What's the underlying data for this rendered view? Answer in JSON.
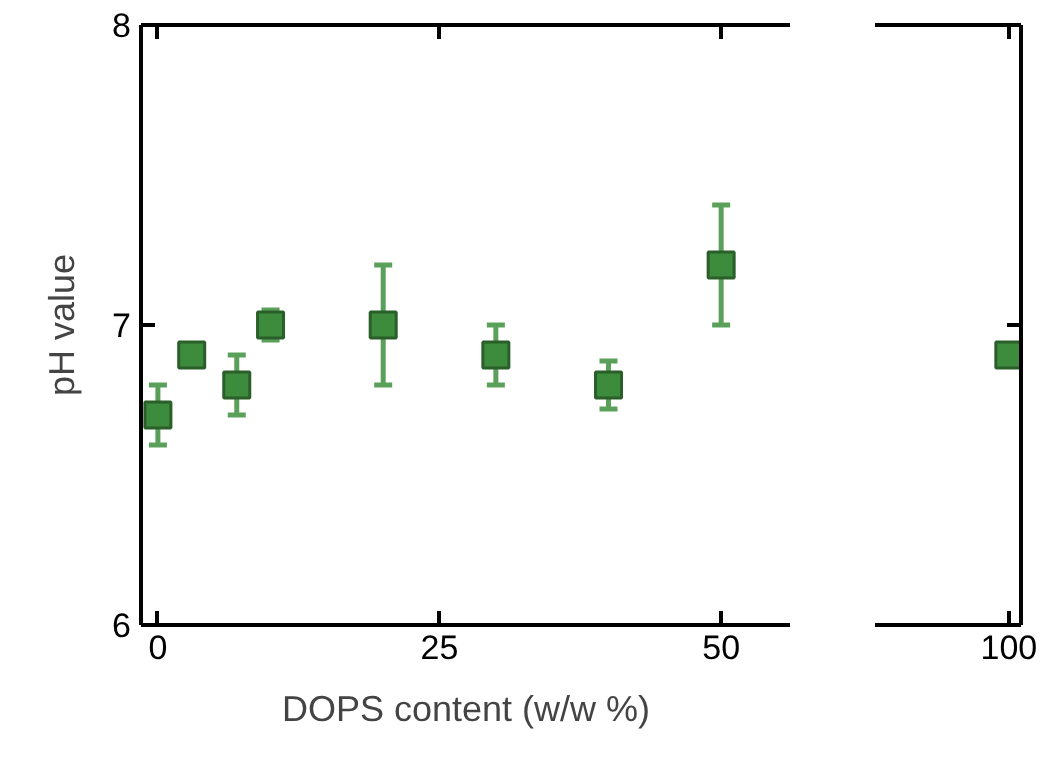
{
  "chart_data": [
    {
      "type": "scatter",
      "xlabel": "DOPS content (w/w %)",
      "ylabel": "pH value",
      "x": [
        0,
        3,
        7,
        10,
        20,
        30,
        40,
        50
      ],
      "xlim": [
        -1.5,
        56.2
      ],
      "xticks": [
        0,
        25,
        50
      ],
      "ylim": [
        6,
        8
      ],
      "yticks": [
        6,
        7,
        8
      ],
      "marker": "square",
      "series": [
        {
          "color": "#3d8b3d",
          "values": [
            6.7,
            6.9,
            6.8,
            7.0,
            7.0,
            6.9,
            6.8,
            7.2
          ],
          "errors": [
            0.1,
            0.03,
            0.1,
            0.05,
            0.2,
            0.1,
            0.08,
            0.2
          ]
        }
      ]
    },
    {
      "type": "scatter",
      "categories": [
        "100"
      ],
      "ylim": [
        6,
        8
      ],
      "yticks": [
        6,
        7,
        8
      ],
      "tick_labels": "x",
      "marker": "square",
      "series": [
        {
          "color": "#3d8b3d",
          "values": [
            6.9
          ]
        }
      ]
    }
  ]
}
